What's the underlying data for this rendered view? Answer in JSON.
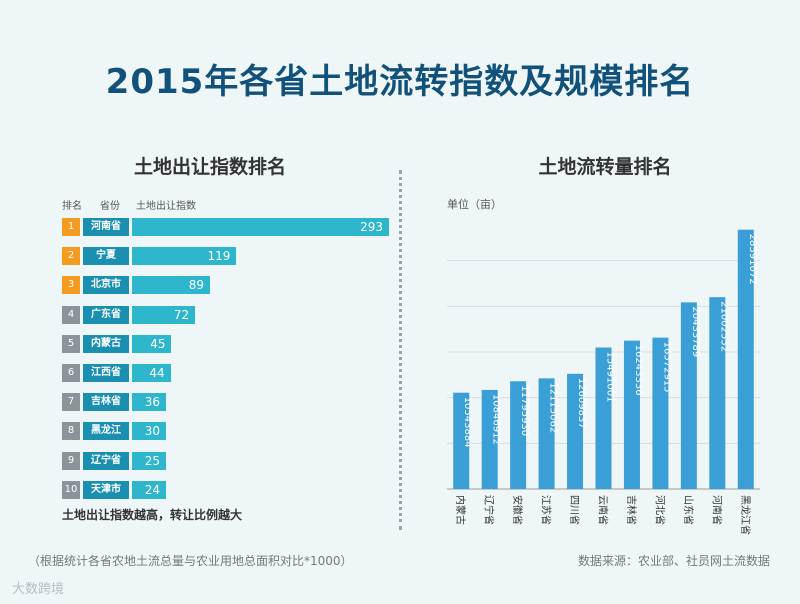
{
  "title": "2015年各省土地流转指数及规模排名",
  "left_panel": {
    "title": "土地出让指数排名",
    "headers": {
      "rank": "排名",
      "province": "省份",
      "index": "土地出让指数"
    },
    "note": "土地出让指数越高，转让比例越大"
  },
  "right_panel": {
    "title": "土地流转量排名",
    "unit_label": "单位（亩）"
  },
  "footnote": "（根据统计各省农地土流总量与农业用地总面积对比*1000）",
  "source": "数据来源：农业部、社员网土流数据",
  "watermark": "大数跨境",
  "colors": {
    "orange": "#f39c1f",
    "gray": "#8a9499",
    "province": "#1a8fb0",
    "bar": "#2eb6cc",
    "vbar": "#3a9fd6",
    "title": "#12517a"
  },
  "chart_data": [
    {
      "type": "bar",
      "orientation": "horizontal",
      "title": "土地出让指数排名",
      "ranks": [
        "1",
        "2",
        "3",
        "4",
        "5",
        "6",
        "7",
        "8",
        "9",
        "10"
      ],
      "categories": [
        "河南省",
        "宁夏",
        "北京市",
        "广东省",
        "内蒙古",
        "江西省",
        "吉林省",
        "黑龙江",
        "辽宁省",
        "天津市"
      ],
      "values": [
        293,
        119,
        89,
        72,
        45,
        44,
        36,
        30,
        25,
        24
      ],
      "xlim": [
        0,
        293
      ]
    },
    {
      "type": "bar",
      "orientation": "vertical",
      "title": "土地流转量排名",
      "ylabel": "单位（亩）",
      "categories": [
        "内蒙古",
        "辽宁省",
        "安徽省",
        "江苏省",
        "四川省",
        "云南省",
        "吉林省",
        "河北省",
        "山东省",
        "河南省",
        "黑龙江省"
      ],
      "values": [
        10543884,
        10846912,
        11795930,
        12115062,
        12609837,
        15491001,
        16243336,
        16572915,
        20433789,
        21002552,
        28391072
      ],
      "labels": [
        "10543884",
        "10846912",
        "11795930",
        "12115062",
        "12609837",
        "15491001",
        "16243336",
        "16572915",
        "20433789",
        "21002552",
        "28391072"
      ],
      "ylim": [
        0,
        30000000
      ]
    }
  ]
}
